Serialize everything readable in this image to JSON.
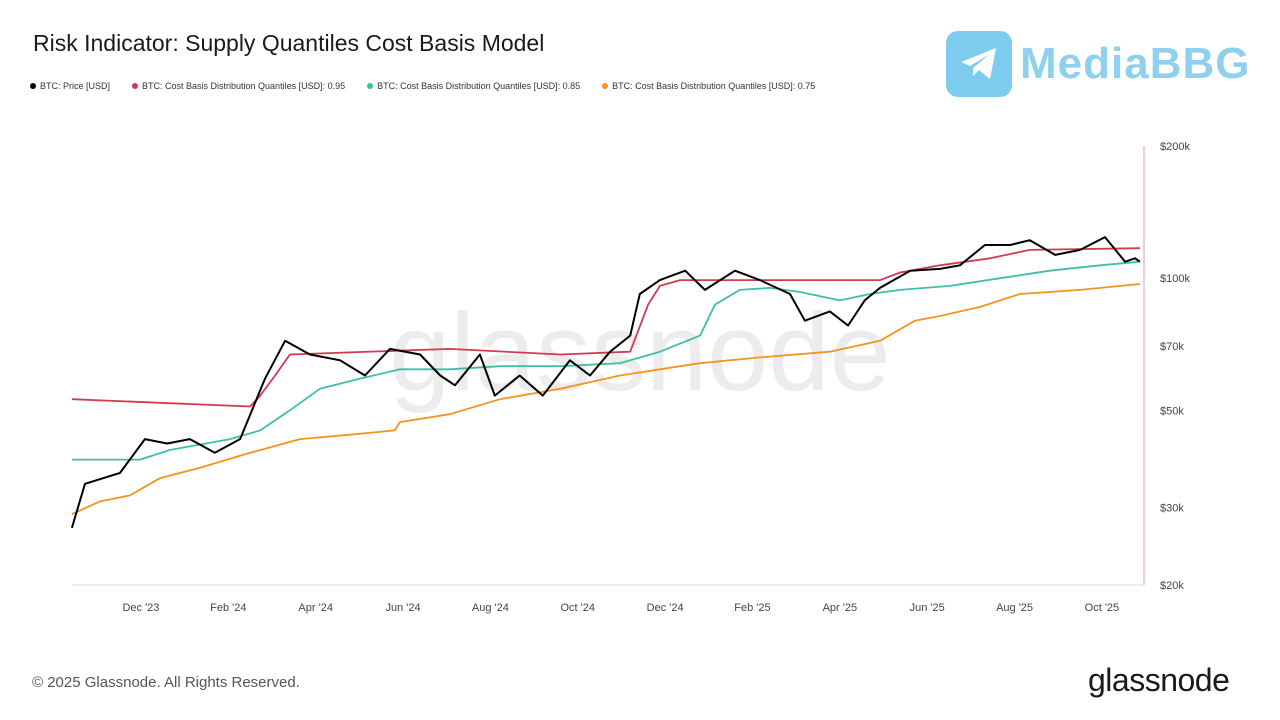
{
  "chart_data": {
    "type": "line",
    "title": "Risk Indicator: Supply Quantiles Cost Basis Model",
    "x_unit": "months since Oct 2023",
    "y_scale": "log",
    "ylim": [
      20000,
      200000
    ],
    "y_ticks": [
      {
        "value": 200000,
        "label": "$200k"
      },
      {
        "value": 100000,
        "label": "$100k"
      },
      {
        "value": 70000,
        "label": "$70k"
      },
      {
        "value": 50000,
        "label": "$50k"
      },
      {
        "value": 30000,
        "label": "$30k"
      },
      {
        "value": 20000,
        "label": "$20k"
      }
    ],
    "x_ticks": [
      {
        "t": 2,
        "label": "Dec '23"
      },
      {
        "t": 4,
        "label": "Feb '24"
      },
      {
        "t": 6,
        "label": "Apr '24"
      },
      {
        "t": 8,
        "label": "Jun '24"
      },
      {
        "t": 10,
        "label": "Aug '24"
      },
      {
        "t": 12,
        "label": "Oct '24"
      },
      {
        "t": 14,
        "label": "Dec '24"
      },
      {
        "t": 16,
        "label": "Feb '25"
      },
      {
        "t": 18,
        "label": "Apr '25"
      },
      {
        "t": 20,
        "label": "Jun '25"
      },
      {
        "t": 22,
        "label": "Aug '25"
      },
      {
        "t": 24,
        "label": "Oct '25"
      }
    ],
    "xlim": [
      0.42,
      24.94
    ],
    "grid": false,
    "legend_placement": "top-left",
    "watermark": "glassnode",
    "series": [
      {
        "name": "BTC: Price [USD]",
        "color": "#000000",
        "t": [
          0.42,
          0.72,
          1.52,
          2.09,
          2.6,
          3.12,
          3.69,
          4.27,
          4.84,
          5.3,
          5.87,
          6.56,
          7.13,
          7.7,
          8.39,
          8.85,
          9.19,
          9.76,
          10.1,
          10.67,
          11.2,
          11.82,
          12.28,
          12.74,
          13.2,
          13.42,
          13.88,
          14.46,
          14.91,
          15.6,
          16.17,
          16.86,
          17.2,
          17.77,
          18.19,
          18.57,
          18.92,
          19.61,
          20.29,
          20.75,
          21.32,
          21.9,
          22.35,
          22.93,
          23.5,
          24.07,
          24.53,
          24.76,
          24.87
        ],
        "values": [
          27000,
          34000,
          36000,
          43000,
          42000,
          43000,
          40000,
          43000,
          59000,
          72000,
          67000,
          65000,
          60000,
          69000,
          67000,
          60000,
          57000,
          67000,
          54000,
          60000,
          54000,
          65000,
          60000,
          68000,
          74000,
          92000,
          99000,
          104000,
          94000,
          104000,
          99000,
          92000,
          80000,
          84000,
          78000,
          89000,
          95000,
          104000,
          105000,
          107000,
          119000,
          119000,
          122000,
          113000,
          116000,
          124000,
          109000,
          111000,
          109000
        ]
      },
      {
        "name": "BTC: Cost Basis Distribution Quantiles [USD]: 0.95",
        "color": "#d23b4f",
        "t": [
          0.42,
          4.5,
          4.73,
          5.07,
          5.41,
          9.07,
          11.6,
          13.2,
          13.61,
          13.88,
          14.34,
          18.92,
          19.38,
          20.29,
          21.44,
          22.35,
          24.87
        ],
        "values": [
          53000,
          51000,
          54000,
          60000,
          67000,
          69000,
          67000,
          68000,
          87000,
          96000,
          99000,
          99000,
          103000,
          107000,
          111000,
          116000,
          117000
        ]
      },
      {
        "name": "BTC: Cost Basis Distribution Quantiles [USD]: 0.85",
        "color": "#3dbfa8",
        "t": [
          0.42,
          1.98,
          2.66,
          4.04,
          4.73,
          5.41,
          6.1,
          7.01,
          7.93,
          9.07,
          10.22,
          11.6,
          12.97,
          13.88,
          14.8,
          15.14,
          15.71,
          16.4,
          17.09,
          18.0,
          18.69,
          19.38,
          20.52,
          21.67,
          22.81,
          23.96,
          24.87
        ],
        "values": [
          38600,
          38600,
          40600,
          43000,
          45000,
          50000,
          56000,
          59000,
          62000,
          62000,
          63000,
          63000,
          64000,
          68000,
          74000,
          87000,
          94000,
          95000,
          93000,
          89000,
          92000,
          94000,
          96000,
          100000,
          104000,
          107000,
          109000
        ]
      },
      {
        "name": "BTC: Cost Basis Distribution Quantiles [USD]: 0.75",
        "color": "#f5931f",
        "t": [
          0.42,
          1.06,
          1.75,
          2.43,
          3.35,
          4.5,
          5.64,
          6.78,
          7.81,
          7.93,
          9.07,
          10.22,
          11.6,
          12.97,
          13.88,
          14.8,
          16.17,
          17.77,
          18.92,
          19.72,
          20.29,
          21.21,
          22.12,
          23.5,
          24.87
        ],
        "values": [
          29000,
          31000,
          32000,
          35000,
          37000,
          40000,
          43000,
          44000,
          45000,
          47000,
          49000,
          53000,
          56000,
          60000,
          62000,
          64000,
          66000,
          68000,
          72000,
          80000,
          82000,
          86000,
          92000,
          94000,
          97000
        ]
      }
    ]
  },
  "legend": [
    {
      "label": "BTC: Price [USD]",
      "color": "#000000"
    },
    {
      "label": "BTC: Cost Basis Distribution Quantiles [USD]: 0.95",
      "color": "#d23b4f"
    },
    {
      "label": "BTC: Cost Basis Distribution Quantiles [USD]: 0.85",
      "color": "#3dbfa8"
    },
    {
      "label": "BTC: Cost Basis Distribution Quantiles [USD]: 0.75",
      "color": "#f5931f"
    }
  ],
  "brand_overlay": "MediaBBG",
  "footer": {
    "copyright": "© 2025 Glassnode. All Rights Reserved.",
    "logo": "glassnode"
  }
}
